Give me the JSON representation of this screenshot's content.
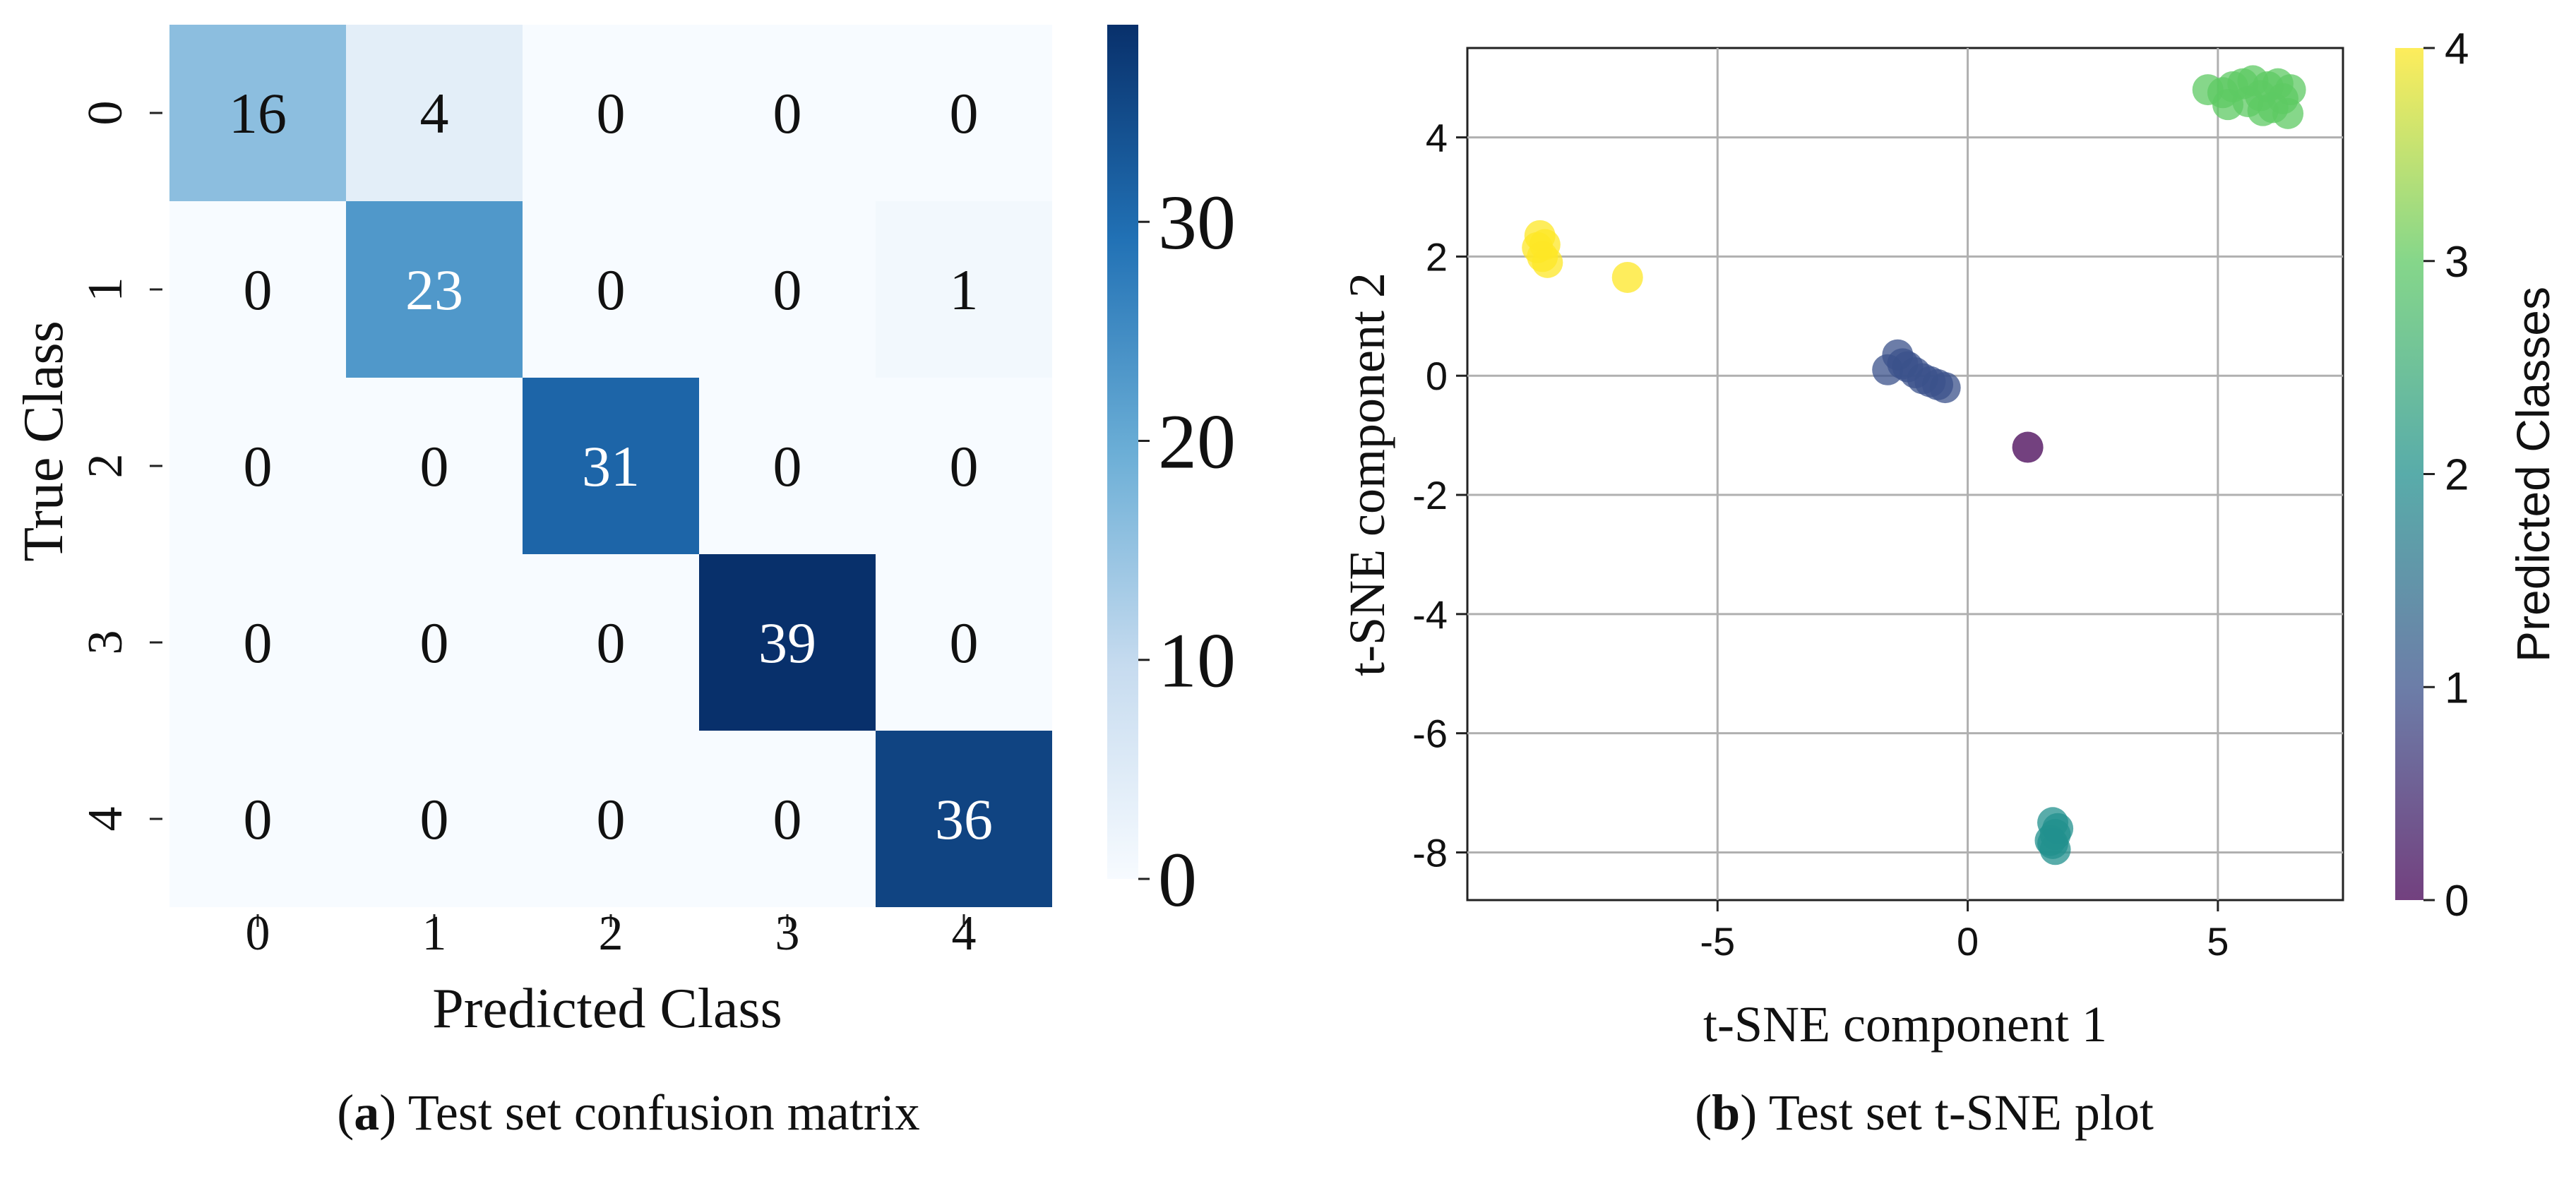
{
  "panels": {
    "a": {
      "caption_letter": "a",
      "caption_text": "Test set confusion matrix"
    },
    "b": {
      "caption_letter": "b",
      "caption_text": "Test set t-SNE plot"
    }
  },
  "colors": {
    "blues_low": "#f7fbff",
    "blues_high": "#08306b",
    "viridis": [
      "#440154",
      "#3b528b",
      "#21908d",
      "#5dc963",
      "#fde725"
    ]
  },
  "chart_data": [
    {
      "type": "heatmap",
      "title": "",
      "xlabel": "Predicted Class",
      "ylabel": "True Class",
      "x_categories": [
        "0",
        "1",
        "2",
        "3",
        "4"
      ],
      "y_categories": [
        "0",
        "1",
        "2",
        "3",
        "4"
      ],
      "matrix": [
        [
          16,
          4,
          0,
          0,
          0
        ],
        [
          0,
          23,
          0,
          0,
          1
        ],
        [
          0,
          0,
          31,
          0,
          0
        ],
        [
          0,
          0,
          0,
          39,
          0
        ],
        [
          0,
          0,
          0,
          0,
          36
        ]
      ],
      "colorbar": {
        "range": [
          0,
          39
        ],
        "ticks": [
          0,
          10,
          20,
          30
        ],
        "tick_labels": [
          "0",
          "10",
          "20",
          "30"
        ]
      }
    },
    {
      "type": "scatter",
      "title": "",
      "xlabel": "t-SNE component 1",
      "ylabel": "t-SNE component 2",
      "xlim": [
        -10,
        7.5
      ],
      "ylim": [
        -8.8,
        5.5
      ],
      "xticks": [
        -5,
        0,
        5
      ],
      "xtick_labels": [
        "-5",
        "0",
        "5"
      ],
      "yticks": [
        -8,
        -6,
        -4,
        -2,
        0,
        2,
        4
      ],
      "ytick_labels": [
        "-8",
        "-6",
        "-4",
        "-2",
        "0",
        "2",
        "4"
      ],
      "grid": true,
      "points": [
        {
          "x": 1.2,
          "y": -1.2,
          "class": 0
        },
        {
          "x": -1.6,
          "y": 0.1,
          "class": 1
        },
        {
          "x": -1.4,
          "y": 0.35,
          "class": 1
        },
        {
          "x": -1.3,
          "y": 0.2,
          "class": 1
        },
        {
          "x": -1.2,
          "y": 0.15,
          "class": 1
        },
        {
          "x": -1.05,
          "y": 0.05,
          "class": 1
        },
        {
          "x": -0.9,
          "y": -0.05,
          "class": 1
        },
        {
          "x": -0.75,
          "y": -0.1,
          "class": 1
        },
        {
          "x": -0.6,
          "y": -0.15,
          "class": 1
        },
        {
          "x": -0.45,
          "y": -0.2,
          "class": 1
        },
        {
          "x": 1.7,
          "y": -7.5,
          "class": 2
        },
        {
          "x": 1.75,
          "y": -7.7,
          "class": 2
        },
        {
          "x": 1.7,
          "y": -7.85,
          "class": 2
        },
        {
          "x": 1.75,
          "y": -7.95,
          "class": 2
        },
        {
          "x": 1.8,
          "y": -7.6,
          "class": 2
        },
        {
          "x": 1.65,
          "y": -7.8,
          "class": 2
        },
        {
          "x": 4.8,
          "y": 4.8,
          "class": 3
        },
        {
          "x": 5.1,
          "y": 4.75,
          "class": 3
        },
        {
          "x": 5.3,
          "y": 4.85,
          "class": 3
        },
        {
          "x": 5.5,
          "y": 4.9,
          "class": 3
        },
        {
          "x": 5.6,
          "y": 4.6,
          "class": 3
        },
        {
          "x": 5.7,
          "y": 4.95,
          "class": 3
        },
        {
          "x": 5.85,
          "y": 4.7,
          "class": 3
        },
        {
          "x": 6.0,
          "y": 4.85,
          "class": 3
        },
        {
          "x": 6.1,
          "y": 4.5,
          "class": 3
        },
        {
          "x": 6.2,
          "y": 4.9,
          "class": 3
        },
        {
          "x": 6.3,
          "y": 4.65,
          "class": 3
        },
        {
          "x": 6.4,
          "y": 4.4,
          "class": 3
        },
        {
          "x": 6.45,
          "y": 4.8,
          "class": 3
        },
        {
          "x": 5.2,
          "y": 4.55,
          "class": 3
        },
        {
          "x": 5.9,
          "y": 4.45,
          "class": 3
        },
        {
          "x": -8.5,
          "y": 2.0,
          "class": 4
        },
        {
          "x": -8.45,
          "y": 2.2,
          "class": 4
        },
        {
          "x": -8.55,
          "y": 2.35,
          "class": 4
        },
        {
          "x": -8.4,
          "y": 1.9,
          "class": 4
        },
        {
          "x": -8.6,
          "y": 2.15,
          "class": 4
        },
        {
          "x": -6.8,
          "y": 1.65,
          "class": 4
        }
      ],
      "colorbar": {
        "label": "Predicted Classes",
        "range": [
          0,
          4
        ],
        "ticks": [
          0,
          1,
          2,
          3,
          4
        ],
        "tick_labels": [
          "0",
          "1",
          "2",
          "3",
          "4"
        ]
      }
    }
  ]
}
